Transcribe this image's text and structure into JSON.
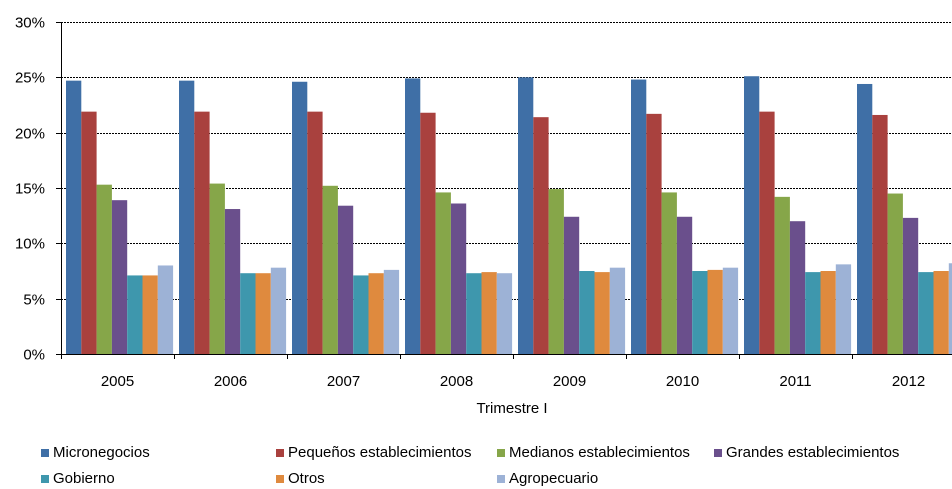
{
  "chart_data": {
    "type": "bar",
    "title": "",
    "xlabel": "Trimestre  I",
    "ylabel": "",
    "categories": [
      "2005",
      "2006",
      "2007",
      "2008",
      "2009",
      "2010",
      "2011",
      "2012"
    ],
    "ylim": [
      0,
      30
    ],
    "yticks": [
      "0%",
      "5%",
      "10%",
      "15%",
      "20%",
      "25%",
      "30%"
    ],
    "grid": true,
    "legend_position": "bottom",
    "series": [
      {
        "name": "Micronegocios",
        "color": "#3F6FA6",
        "values": [
          24.7,
          24.7,
          24.6,
          24.9,
          25.0,
          24.8,
          25.1,
          24.4
        ]
      },
      {
        "name": "Pequeños establecimientos",
        "color": "#A9413E",
        "values": [
          21.9,
          21.9,
          21.9,
          21.8,
          21.4,
          21.7,
          21.9,
          21.6
        ]
      },
      {
        "name": "Medianos establecimientos",
        "color": "#86A649",
        "values": [
          15.3,
          15.4,
          15.2,
          14.6,
          14.9,
          14.6,
          14.2,
          14.5
        ]
      },
      {
        "name": "Grandes establecimientos",
        "color": "#6A4F8C",
        "values": [
          13.9,
          13.1,
          13.4,
          13.6,
          12.4,
          12.4,
          12.0,
          12.3
        ]
      },
      {
        "name": "Gobierno",
        "color": "#3E97AD",
        "values": [
          7.1,
          7.3,
          7.1,
          7.3,
          7.5,
          7.5,
          7.4,
          7.4
        ]
      },
      {
        "name": "Otros",
        "color": "#DF8A3E",
        "values": [
          7.1,
          7.3,
          7.3,
          7.4,
          7.4,
          7.6,
          7.5,
          7.5
        ]
      },
      {
        "name": "Agropecuario",
        "color": "#9DB2D6",
        "values": [
          8.0,
          7.8,
          7.6,
          7.3,
          7.8,
          7.8,
          8.1,
          8.2
        ]
      }
    ]
  }
}
